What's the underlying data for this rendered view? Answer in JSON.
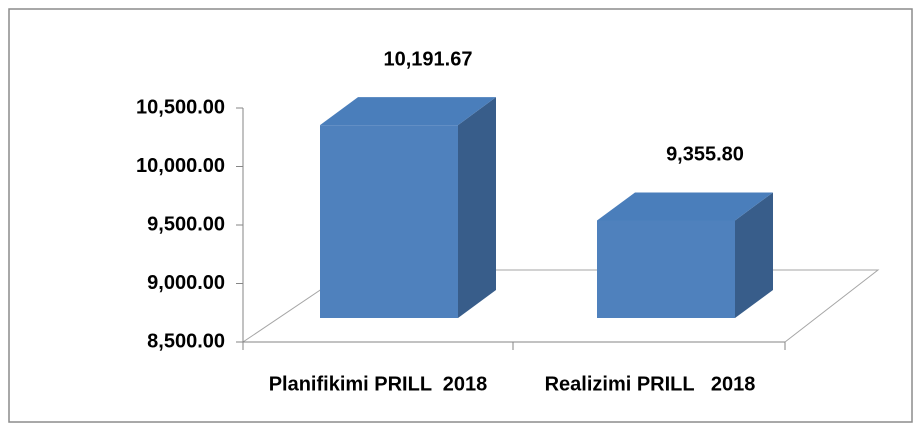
{
  "chart_data": {
    "type": "bar3d",
    "categories": [
      "Planifikimi PRILL  2018",
      "Realizimi PRILL   2018"
    ],
    "values": [
      10191.67,
      9355.8
    ],
    "value_labels": [
      "10,191.67",
      "9,355.80"
    ],
    "color": "#4f81bd",
    "ylim": [
      8500,
      10500
    ],
    "yticks": [
      {
        "value": 8500,
        "label": "8,500.00"
      },
      {
        "value": 9000,
        "label": "9,000.00"
      },
      {
        "value": 9500,
        "label": "9,500.00"
      },
      {
        "value": 10000,
        "label": "10,000.00"
      },
      {
        "value": 10500,
        "label": "10,500.00"
      }
    ]
  }
}
